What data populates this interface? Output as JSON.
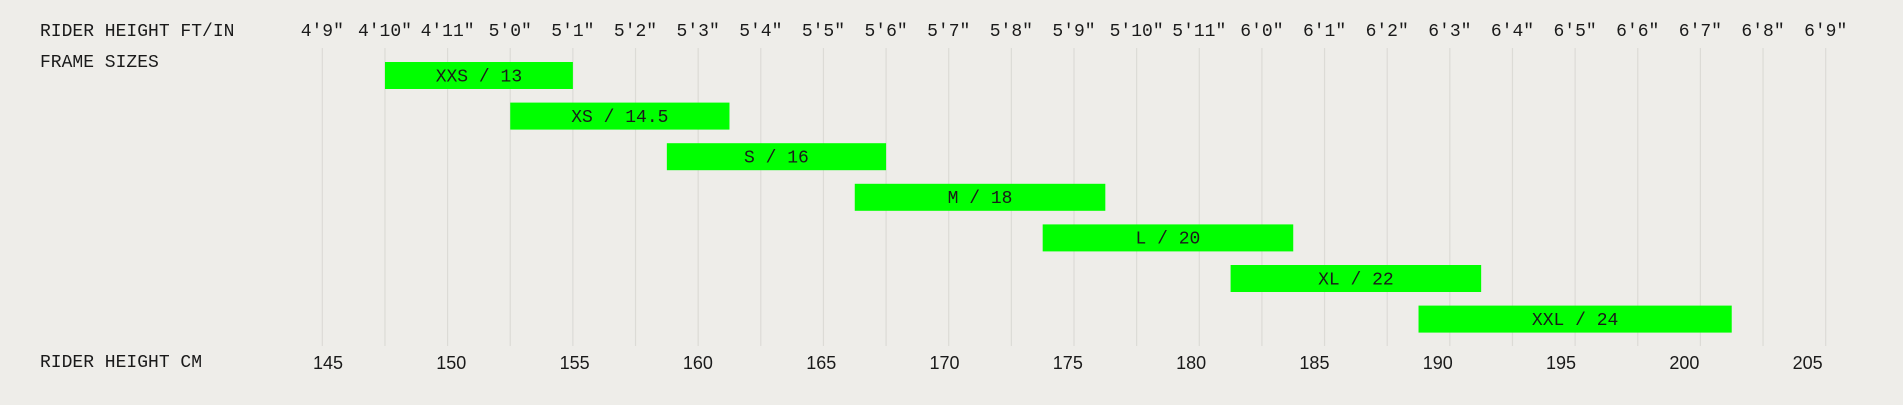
{
  "chart_data": {
    "type": "range-bar",
    "x2_label": "RIDER HEIGHT FT/IN",
    "y_label": "FRAME SIZES",
    "x_label": "RIDER HEIGHT CM",
    "xlim": [
      143.5,
      207
    ],
    "xticks": [
      145,
      150,
      155,
      160,
      165,
      170,
      175,
      180,
      185,
      190,
      195,
      200,
      205
    ],
    "x2lim": [
      56.5,
      81.5
    ],
    "x2ticks": [
      {
        "value": 57,
        "label": "4'9\""
      },
      {
        "value": 58,
        "label": "4'10\""
      },
      {
        "value": 59,
        "label": "4'11\""
      },
      {
        "value": 60,
        "label": "5'0\""
      },
      {
        "value": 61,
        "label": "5'1\""
      },
      {
        "value": 62,
        "label": "5'2\""
      },
      {
        "value": 63,
        "label": "5'3\""
      },
      {
        "value": 64,
        "label": "5'4\""
      },
      {
        "value": 65,
        "label": "5'5\""
      },
      {
        "value": 66,
        "label": "5'6\""
      },
      {
        "value": 67,
        "label": "5'7\""
      },
      {
        "value": 68,
        "label": "5'8\""
      },
      {
        "value": 69,
        "label": "5'9\""
      },
      {
        "value": 70,
        "label": "5'10\""
      },
      {
        "value": 71,
        "label": "5'11\""
      },
      {
        "value": 72,
        "label": "6'0\""
      },
      {
        "value": 73,
        "label": "6'1\""
      },
      {
        "value": 74,
        "label": "6'2\""
      },
      {
        "value": 75,
        "label": "6'3\""
      },
      {
        "value": 76,
        "label": "6'4\""
      },
      {
        "value": 77,
        "label": "6'5\""
      },
      {
        "value": 78,
        "label": "6'6\""
      },
      {
        "value": 79,
        "label": "6'7\""
      },
      {
        "value": 80,
        "label": "6'8\""
      },
      {
        "value": 81,
        "label": "6'9\""
      }
    ],
    "grid": true,
    "color": "#00ff00",
    "axis": "x2",
    "categories": [
      "XXS / 13",
      "XS / 14.5",
      "S / 16",
      "M / 18",
      "L / 20",
      "XL / 22",
      "XXL / 24"
    ],
    "starts": [
      58,
      60,
      62.5,
      65.5,
      68.5,
      71.5,
      74.5
    ],
    "ends": [
      61,
      63.5,
      66,
      69.5,
      72.5,
      75.5,
      79.5
    ]
  }
}
